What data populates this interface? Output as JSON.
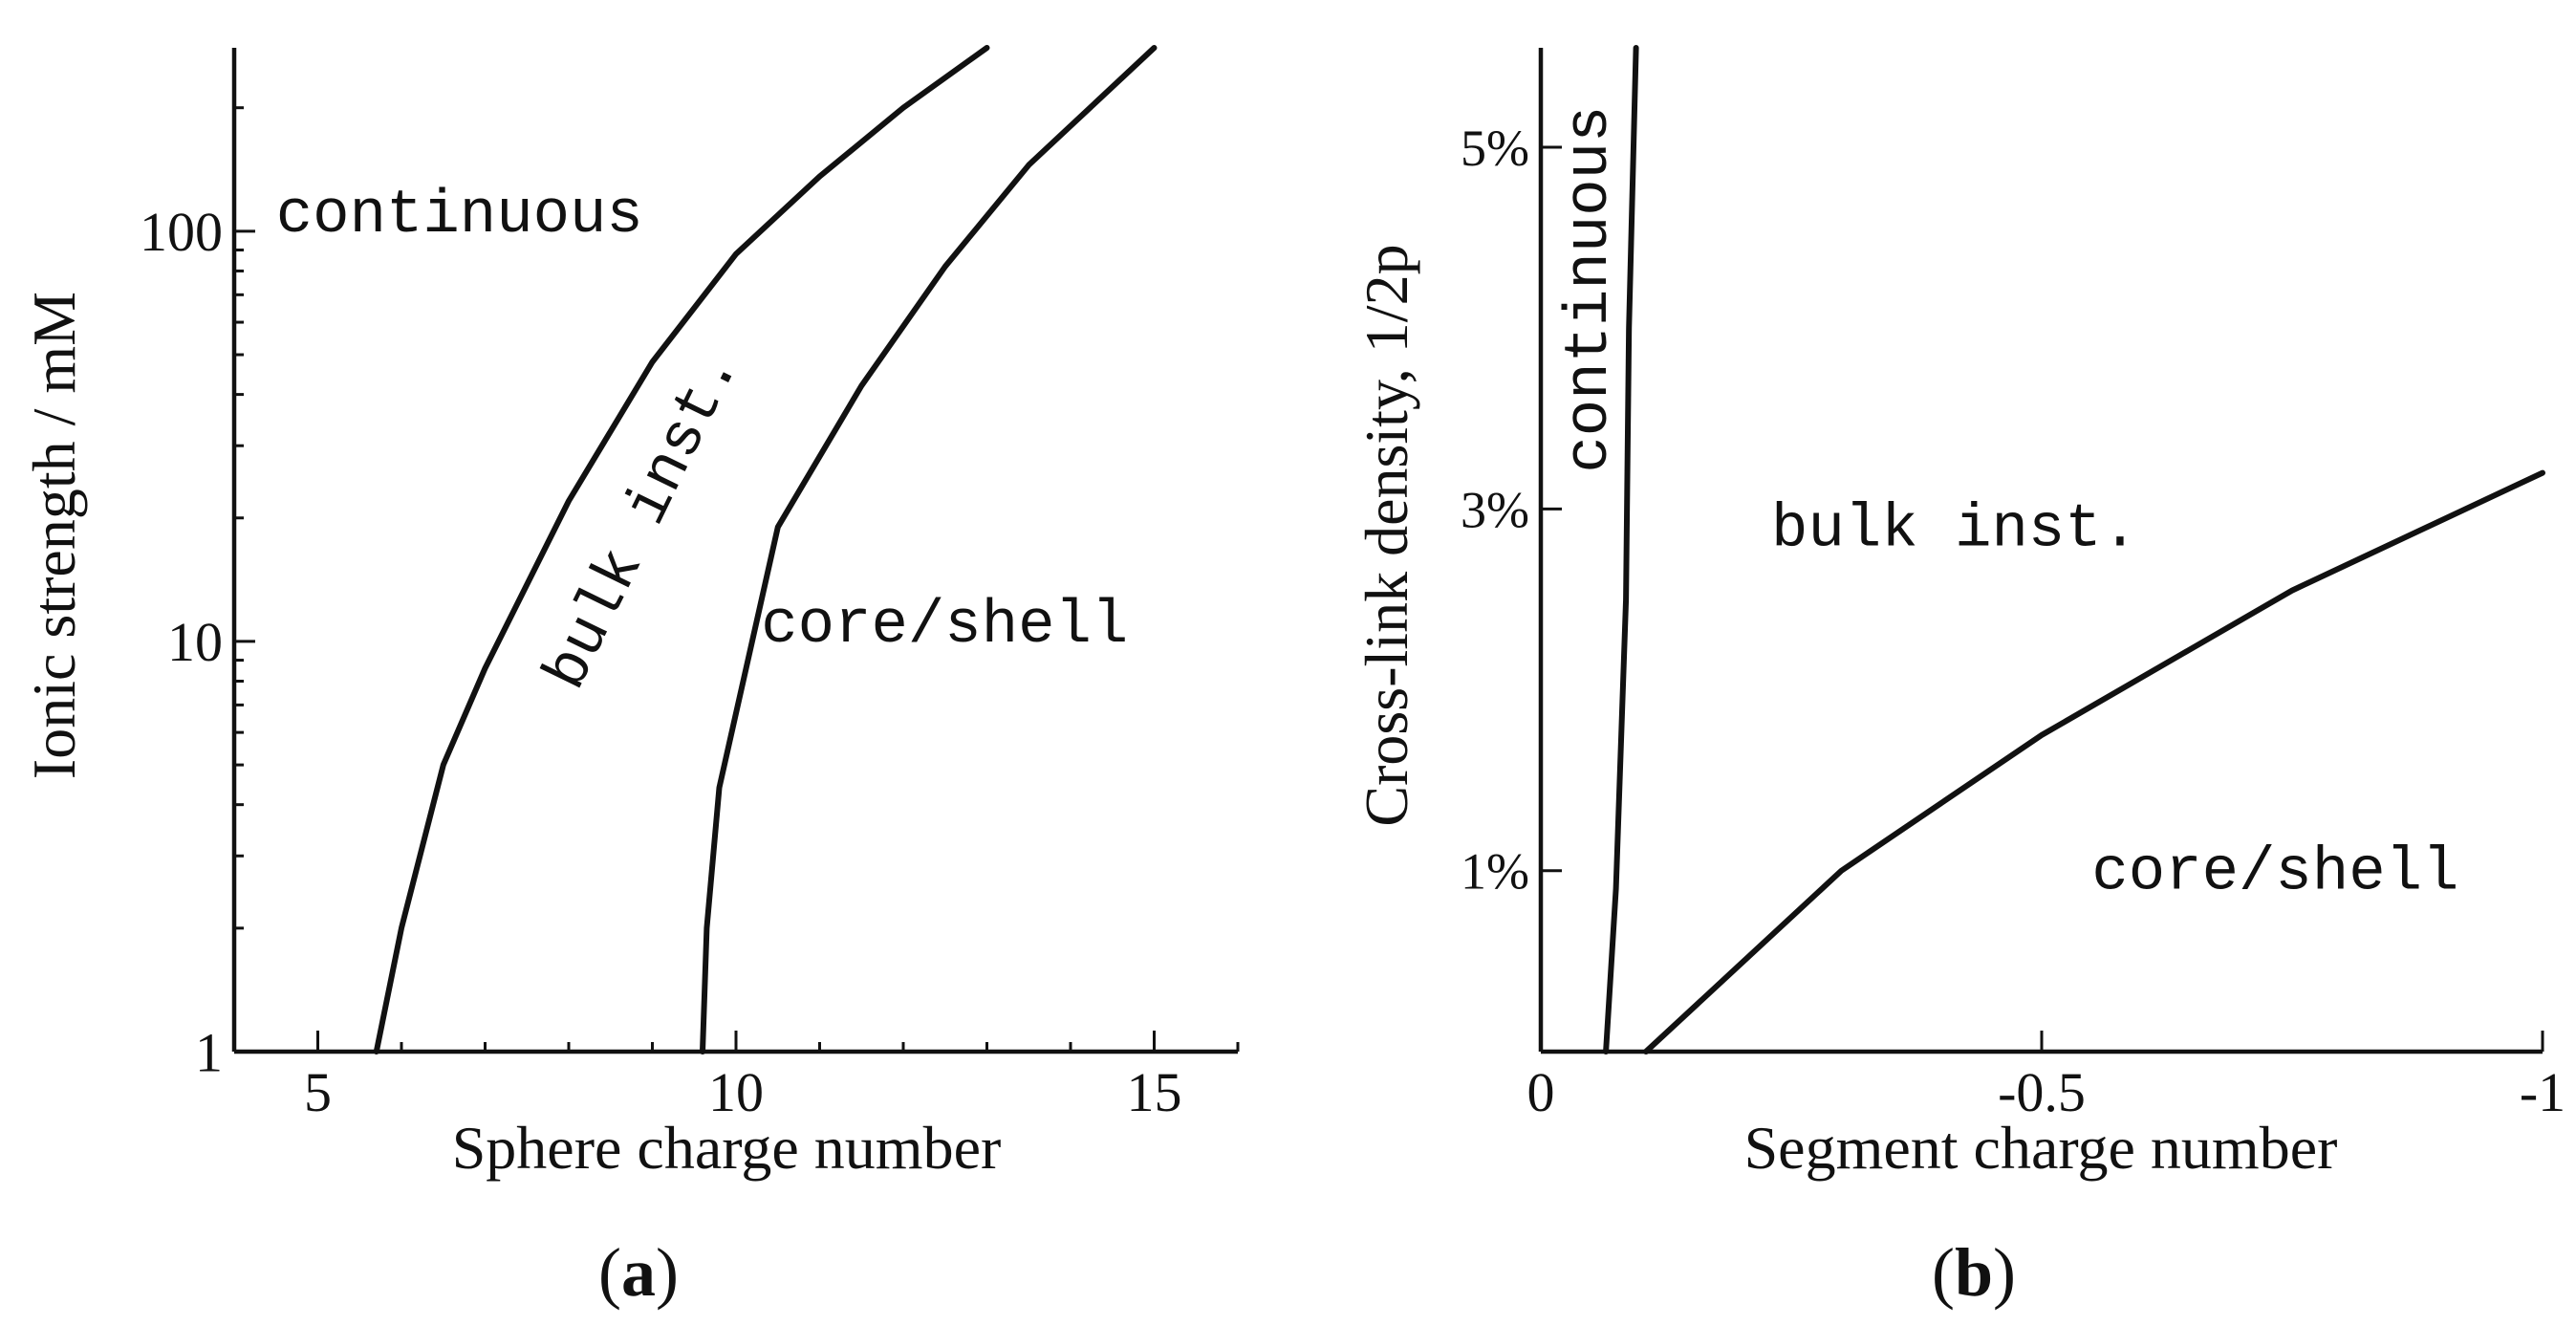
{
  "chart_data": [
    {
      "panel": "(a)",
      "type": "line",
      "xlabel": "Sphere charge number",
      "ylabel": "Ionic strength / mM",
      "xlim": [
        4,
        16
      ],
      "ylim": [
        1,
        280
      ],
      "yscale": "log",
      "xticks": [
        {
          "value": 5,
          "label": "5"
        },
        {
          "value": 10,
          "label": "10"
        },
        {
          "value": 15,
          "label": "15"
        }
      ],
      "yticks": [
        {
          "value": 1,
          "label": "1"
        },
        {
          "value": 10,
          "label": "10"
        },
        {
          "value": 100,
          "label": "100"
        }
      ],
      "series": [
        {
          "name": "continuous / bulk boundary",
          "points": [
            [
              5.7,
              1
            ],
            [
              6.0,
              2
            ],
            [
              6.5,
              5
            ],
            [
              7.0,
              8.6
            ],
            [
              8.0,
              22
            ],
            [
              9.0,
              48
            ],
            [
              10.0,
              88
            ],
            [
              11.0,
              136
            ],
            [
              12.0,
              200
            ],
            [
              13.0,
              280
            ]
          ]
        },
        {
          "name": "bulk / core-shell boundary",
          "points": [
            [
              9.6,
              1
            ],
            [
              9.65,
              2
            ],
            [
              9.8,
              4.4
            ],
            [
              10.5,
              19
            ],
            [
              11.5,
              42
            ],
            [
              12.5,
              82
            ],
            [
              13.5,
              145
            ],
            [
              15.0,
              280
            ]
          ]
        }
      ],
      "annotations": [
        {
          "text": "continuous",
          "x": 4.5,
          "y": 100
        },
        {
          "text": "bulk inst.",
          "x": 8.1,
          "y": 7.5,
          "rotation": -64
        },
        {
          "text": "core/shell",
          "x": 10.3,
          "y": 10
        }
      ]
    },
    {
      "panel": "(b)",
      "type": "line",
      "xlabel": "Segment charge number",
      "ylabel": "Cross-link density, 1/2p",
      "xlim": [
        0,
        -1
      ],
      "ylim": [
        0,
        5.55
      ],
      "xticks": [
        {
          "value": 0,
          "label": "0"
        },
        {
          "value": -0.5,
          "label": "-0.5"
        },
        {
          "value": -1,
          "label": "-1"
        }
      ],
      "yticks": [
        {
          "value": 1,
          "label": "1%"
        },
        {
          "value": 3,
          "label": "3%"
        },
        {
          "value": 5,
          "label": "5%"
        }
      ],
      "series": [
        {
          "name": "continuous / bulk boundary",
          "points": [
            [
              -0.065,
              0
            ],
            [
              -0.075,
              0.9
            ],
            [
              -0.085,
              2.5
            ],
            [
              -0.088,
              4.0
            ],
            [
              -0.095,
              5.55
            ]
          ]
        },
        {
          "name": "bulk / core-shell boundary",
          "points": [
            [
              -0.105,
              0
            ],
            [
              -0.3,
              1.0
            ],
            [
              -0.5,
              1.75
            ],
            [
              -0.75,
              2.55
            ],
            [
              -1.0,
              3.2
            ]
          ]
        }
      ],
      "annotations": [
        {
          "text": "continuous",
          "x": -0.065,
          "y": 3.2,
          "rotation": -90
        },
        {
          "text": "bulk inst.",
          "x": -0.23,
          "y": 2.8
        },
        {
          "text": "core/shell",
          "x": -0.55,
          "y": 0.9
        }
      ]
    }
  ],
  "panel_labels": {
    "a_letter": "a",
    "b_letter": "b",
    "open": "(",
    "close": ")"
  }
}
